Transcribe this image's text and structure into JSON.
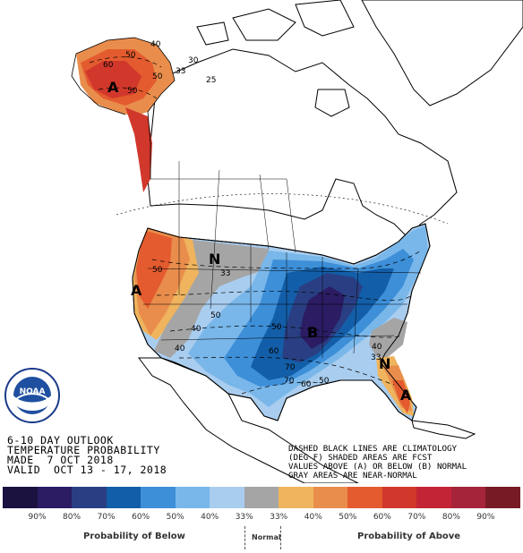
{
  "map": {
    "region_labels": [
      {
        "id": "alaska-above",
        "text": "A"
      },
      {
        "id": "west-above",
        "text": "A"
      },
      {
        "id": "central-below",
        "text": "B"
      },
      {
        "id": "florida-above",
        "text": "A"
      },
      {
        "id": "northern-plains-normal",
        "text": "N"
      },
      {
        "id": "southeast-normal",
        "text": "N"
      }
    ],
    "contour_labels": [
      "40",
      "50",
      "60",
      "50",
      "33",
      "40",
      "50",
      "50",
      "40",
      "33",
      "50",
      "60",
      "70",
      "60",
      "50",
      "70",
      "40",
      "33",
      "50",
      "30",
      "25"
    ],
    "category_colors": {
      "below_90": "#1c1240",
      "below_80": "#2b1c63",
      "below_70": "#2a3f83",
      "below_60": "#135ea8",
      "below_50": "#3d8fd8",
      "below_40": "#79b7ea",
      "below_33": "#a9cdef",
      "normal": "#a5a5a5",
      "above_33": "#efb45d",
      "above_40": "#e98d4c",
      "above_50": "#e45b2f",
      "above_60": "#d1382b",
      "above_70": "#c32537",
      "above_80": "#a5243a",
      "above_90": "#781a25"
    }
  },
  "title": {
    "line1": "6-10 DAY OUTLOOK",
    "line2": "TEMPERATURE PROBABILITY",
    "line3": "MADE  7 OCT 2018",
    "line4": "VALID  OCT 13 - 17, 2018"
  },
  "notes": {
    "line1": "DASHED BLACK LINES ARE CLIMATOLOGY",
    "line2": "(DEG F) SHADED AREAS ARE FCST",
    "line3": "VALUES ABOVE (A) OR BELOW (B) NORMAL",
    "line4": "GRAY AREAS ARE NEAR-NORMAL"
  },
  "legend": {
    "swatches": [
      "#1c1240",
      "#2b1c63",
      "#2a3f83",
      "#135ea8",
      "#3d8fd8",
      "#79b7ea",
      "#a9cdef",
      "#a5a5a5",
      "#efb45d",
      "#e98d4c",
      "#e45b2f",
      "#d1382b",
      "#c32537",
      "#a5243a",
      "#781a25"
    ],
    "ticks": [
      "90%",
      "80%",
      "70%",
      "60%",
      "50%",
      "40%",
      "33%",
      "33%",
      "40%",
      "50%",
      "60%",
      "70%",
      "80%",
      "90%"
    ],
    "below_caption": "Probability of Below",
    "normal_caption": "Normal",
    "above_caption": "Probability of Above"
  },
  "logo": {
    "text": "NOAA"
  }
}
